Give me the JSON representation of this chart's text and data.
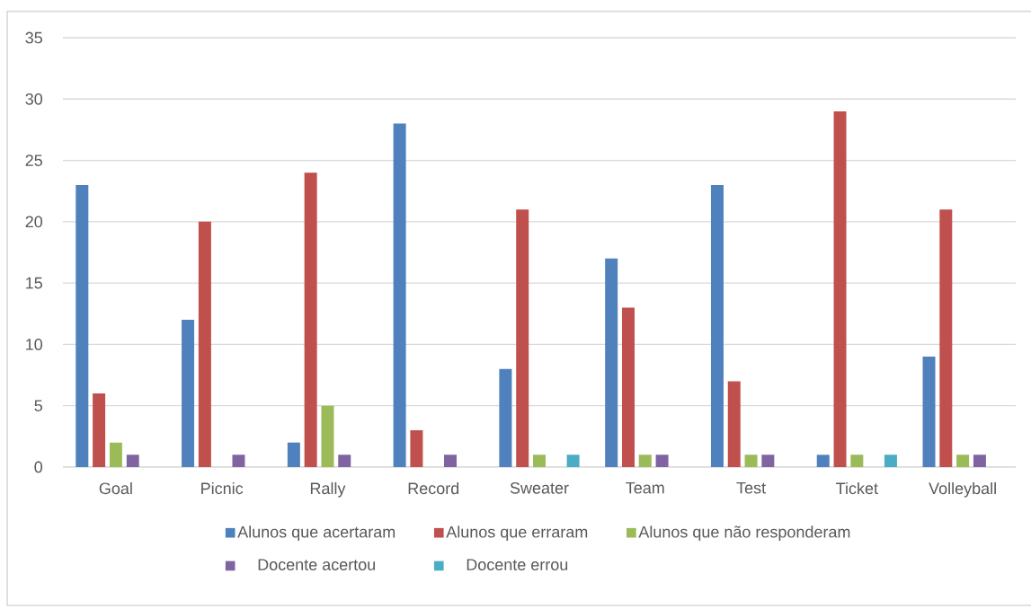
{
  "chart_data": {
    "type": "bar",
    "categories": [
      "Goal",
      "Picnic",
      "Rally",
      "Record",
      "Sweater",
      "Team",
      "Test",
      "Ticket",
      "Volleyball"
    ],
    "series": [
      {
        "name": "Alunos que acertaram",
        "color": "#4f81bd",
        "values": [
          23,
          12,
          2,
          28,
          8,
          17,
          23,
          1,
          9
        ]
      },
      {
        "name": "Alunos que erraram",
        "color": "#c0504d",
        "values": [
          6,
          20,
          24,
          3,
          21,
          13,
          7,
          29,
          21
        ]
      },
      {
        "name": "Alunos que não responderam",
        "color": "#9bbb59",
        "values": [
          2,
          0,
          5,
          0,
          1,
          1,
          1,
          1,
          1
        ]
      },
      {
        "name": "Docente acertou",
        "color": "#8064a2",
        "values": [
          1,
          1,
          1,
          1,
          0,
          1,
          1,
          0,
          1
        ]
      },
      {
        "name": "Docente errou",
        "color": "#4bacc6",
        "values": [
          0,
          0,
          0,
          0,
          1,
          0,
          0,
          1,
          0
        ]
      }
    ],
    "ylim": [
      0,
      35
    ],
    "yticks": [
      0,
      5,
      10,
      15,
      20,
      25,
      30,
      35
    ],
    "grid": "y",
    "legend": "bottom"
  }
}
